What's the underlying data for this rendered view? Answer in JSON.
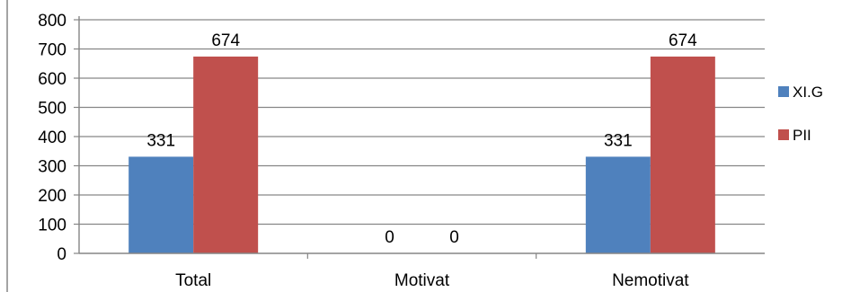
{
  "chart_data": {
    "type": "bar",
    "categories": [
      "Total",
      "Motivat",
      "Nemotivat"
    ],
    "series": [
      {
        "name": "XI.G",
        "values": [
          331,
          0,
          331
        ],
        "color": "#4f81bd"
      },
      {
        "name": "PII",
        "values": [
          674,
          0,
          674
        ],
        "color": "#c0504d"
      }
    ],
    "y_ticks": [
      "0",
      "100",
      "200",
      "300",
      "400",
      "500",
      "600",
      "700",
      "800"
    ],
    "data_labels": [
      [
        "331",
        "0",
        "331"
      ],
      [
        "674",
        "0",
        "674"
      ]
    ],
    "ylim": [
      0,
      800
    ],
    "grid": true,
    "legend": "right",
    "colors": {
      "gridline": "#868686",
      "axis": "#868686",
      "border": "#868686"
    }
  }
}
